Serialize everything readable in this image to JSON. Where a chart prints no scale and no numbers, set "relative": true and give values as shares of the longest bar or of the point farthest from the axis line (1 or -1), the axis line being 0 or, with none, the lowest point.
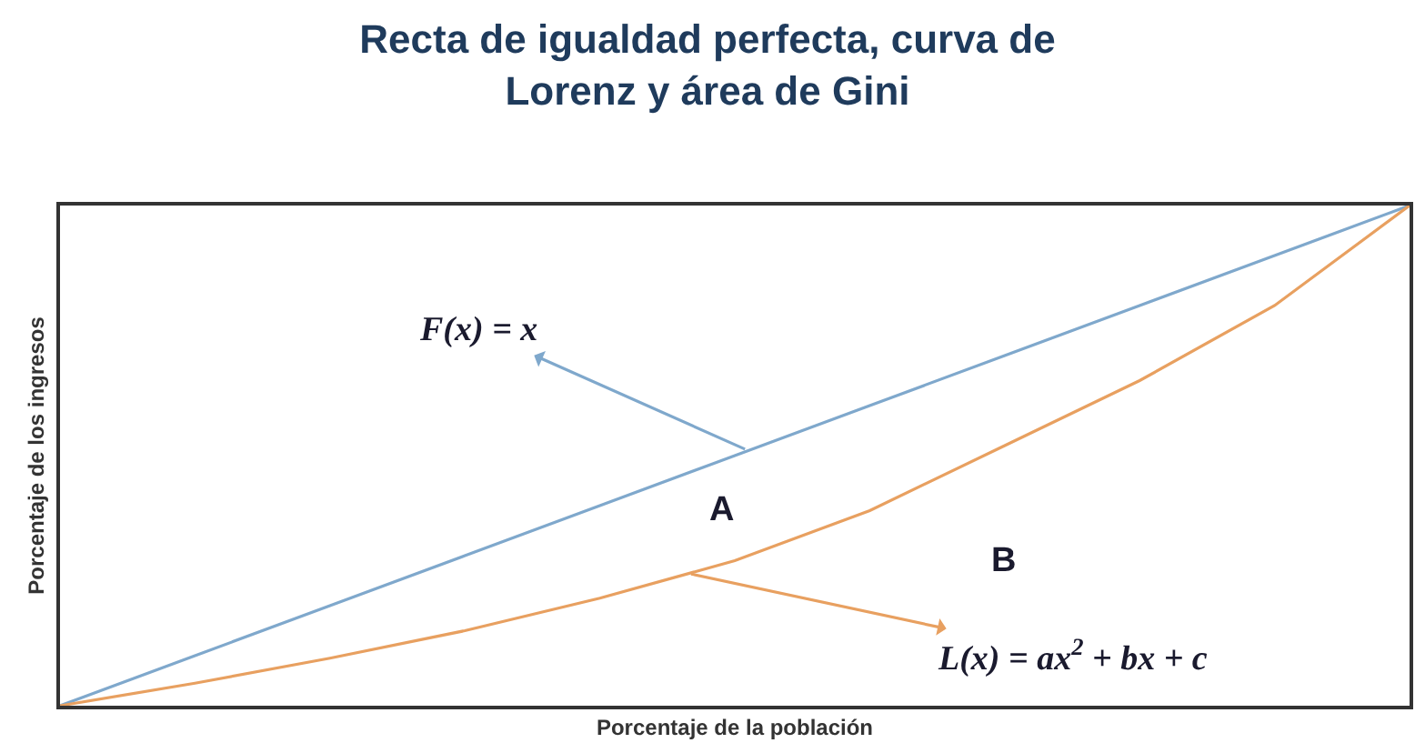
{
  "chart_data": {
    "type": "line",
    "title": "Recta de igualdad perfecta, curva de Lorenz y área de Gini",
    "xlabel": "Porcentaje de la población",
    "ylabel": "Porcentaje de los ingresos",
    "relative": true,
    "categories": [
      null,
      null,
      null,
      null,
      null,
      null,
      null,
      null,
      null,
      null,
      null
    ],
    "series": [
      {
        "color": "#7fa8cc",
        "values": [
          0,
          0.1,
          0.2,
          0.3,
          0.4,
          0.5,
          0.6,
          0.7,
          0.8,
          0.9,
          1
        ]
      },
      {
        "color": "#e8a060",
        "values": [
          0,
          0.045,
          0.095,
          0.15,
          0.215,
          0.29,
          0.39,
          0.52,
          0.65,
          0.8,
          1
        ]
      }
    ],
    "annotations": [
      "F(x) = x",
      "A",
      "B",
      "L(x) = ax$^{2}$ + bx + c"
    ],
    "grid": false,
    "marker": "none",
    "line_style": "solid"
  }
}
